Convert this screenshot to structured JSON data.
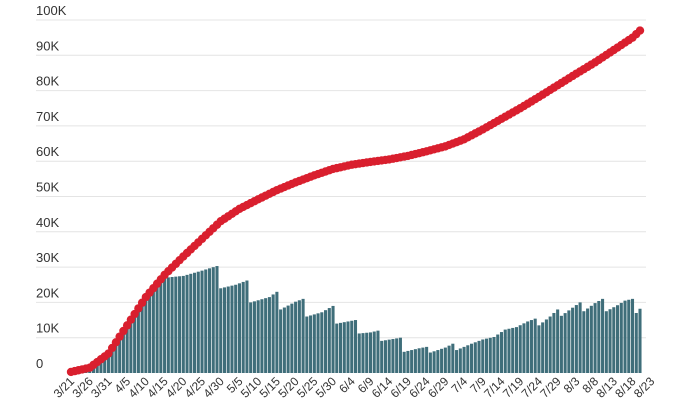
{
  "chart_data": {
    "type": "bar",
    "title": "",
    "xlabel": "",
    "ylabel": "",
    "grid": true,
    "ylim": [
      0,
      100000
    ],
    "yticks": [
      {
        "value": 0,
        "label": "0"
      },
      {
        "value": 10000,
        "label": "10K"
      },
      {
        "value": 20000,
        "label": "20K"
      },
      {
        "value": 30000,
        "label": "30K"
      },
      {
        "value": 40000,
        "label": "40K"
      },
      {
        "value": 50000,
        "label": "50K"
      },
      {
        "value": 60000,
        "label": "60K"
      },
      {
        "value": 70000,
        "label": "70K"
      },
      {
        "value": 80000,
        "label": "80K"
      },
      {
        "value": 90000,
        "label": "90K"
      },
      {
        "value": 100000,
        "label": "100K"
      }
    ],
    "xticks": [
      "3/21",
      "3/26",
      "3/31",
      "4/5",
      "4/10",
      "4/15",
      "4/20",
      "4/25",
      "4/30",
      "5/5",
      "5/10",
      "5/15",
      "5/20",
      "5/25",
      "5/30",
      "6/4",
      "6/9",
      "6/14",
      "6/19",
      "6/24",
      "6/29",
      "7/4",
      "7/9",
      "7/14",
      "7/19",
      "7/24",
      "7/29",
      "8/3",
      "8/8",
      "8/13",
      "8/18",
      "8/23"
    ],
    "series": [
      {
        "type": "bar",
        "color": "#3f6e7a",
        "anchors": [
          [
            0,
            0
          ],
          [
            5,
            900
          ],
          [
            10,
            6200
          ],
          [
            15,
            14000
          ],
          [
            20,
            22500
          ],
          [
            25,
            27000
          ],
          [
            30,
            27500
          ],
          [
            35,
            29000
          ],
          [
            39,
            30300
          ],
          [
            40,
            24000
          ],
          [
            44,
            25000
          ],
          [
            47,
            26200
          ],
          [
            48,
            20000
          ],
          [
            53,
            21500
          ],
          [
            55,
            23000
          ],
          [
            56,
            18000
          ],
          [
            60,
            20200
          ],
          [
            62,
            21000
          ],
          [
            63,
            16000
          ],
          [
            67,
            17200
          ],
          [
            70,
            19000
          ],
          [
            71,
            14000
          ],
          [
            75,
            14800
          ],
          [
            76,
            15000
          ],
          [
            77,
            11200
          ],
          [
            80,
            11500
          ],
          [
            82,
            12000
          ],
          [
            83,
            9100
          ],
          [
            87,
            9800
          ],
          [
            88,
            10000
          ],
          [
            89,
            6000
          ],
          [
            93,
            7000
          ],
          [
            95,
            7400
          ],
          [
            96,
            5800
          ],
          [
            100,
            7200
          ],
          [
            102,
            8300
          ],
          [
            103,
            6500
          ],
          [
            107,
            8300
          ],
          [
            110,
            9500
          ],
          [
            113,
            10200
          ],
          [
            116,
            12300
          ],
          [
            119,
            13000
          ],
          [
            122,
            14600
          ],
          [
            124,
            15400
          ],
          [
            125,
            13500
          ],
          [
            128,
            16000
          ],
          [
            130,
            18000
          ],
          [
            131,
            16200
          ],
          [
            134,
            18500
          ],
          [
            136,
            20000
          ],
          [
            137,
            17500
          ],
          [
            140,
            19800
          ],
          [
            142,
            21000
          ],
          [
            143,
            17500
          ],
          [
            146,
            19200
          ],
          [
            148,
            20500
          ],
          [
            150,
            21000
          ],
          [
            151,
            17000
          ],
          [
            152,
            18200
          ]
        ]
      },
      {
        "type": "line",
        "color": "#d91f2e",
        "anchors": [
          [
            0,
            300
          ],
          [
            5,
            1500
          ],
          [
            10,
            5500
          ],
          [
            15,
            13500
          ],
          [
            20,
            21500
          ],
          [
            25,
            27800
          ],
          [
            30,
            33000
          ],
          [
            35,
            38000
          ],
          [
            40,
            43000
          ],
          [
            45,
            46500
          ],
          [
            50,
            49200
          ],
          [
            55,
            51800
          ],
          [
            60,
            54000
          ],
          [
            65,
            56000
          ],
          [
            70,
            57800
          ],
          [
            75,
            59000
          ],
          [
            80,
            59800
          ],
          [
            85,
            60500
          ],
          [
            90,
            61500
          ],
          [
            95,
            62800
          ],
          [
            100,
            64200
          ],
          [
            105,
            66200
          ],
          [
            110,
            69000
          ],
          [
            115,
            72000
          ],
          [
            120,
            75000
          ],
          [
            125,
            78200
          ],
          [
            130,
            81500
          ],
          [
            135,
            84800
          ],
          [
            140,
            88000
          ],
          [
            145,
            91500
          ],
          [
            150,
            95000
          ],
          [
            152,
            97000
          ]
        ]
      }
    ]
  }
}
